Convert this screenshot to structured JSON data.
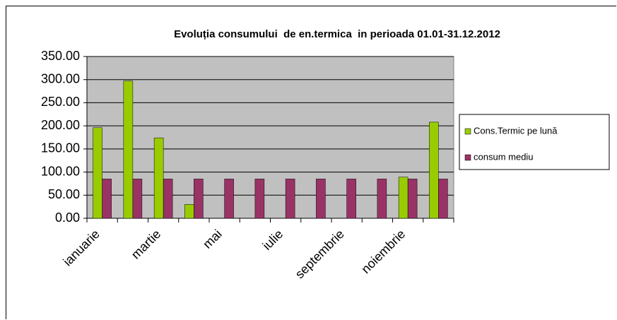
{
  "chart_data": {
    "type": "bar",
    "title": "Evoluția consumului  de en.termica  in perioada 01.01-31.12.2012",
    "categories": [
      "ianuarie",
      null,
      "martie",
      null,
      "mai",
      null,
      "iulie",
      null,
      "septembrie",
      null,
      "noiembrie",
      null
    ],
    "series": [
      {
        "name": "Cons.Termic pe lună",
        "color": "#99cc00",
        "values": [
          196,
          297,
          174,
          30,
          0,
          0,
          0,
          0,
          0,
          0,
          89,
          208
        ]
      },
      {
        "name": "consum mediu",
        "color": "#993366",
        "values": [
          85,
          85,
          85,
          85,
          85,
          85,
          85,
          85,
          85,
          85,
          85,
          85
        ]
      }
    ],
    "ylim": [
      0,
      350
    ],
    "yticks": [
      {
        "value": 0,
        "label": "0.00"
      },
      {
        "value": 50,
        "label": "50.00"
      },
      {
        "value": 100,
        "label": "100.00"
      },
      {
        "value": 150,
        "label": "150.00"
      },
      {
        "value": 200,
        "label": "200.00"
      },
      {
        "value": 250,
        "label": "250.00"
      },
      {
        "value": 300,
        "label": "300.00"
      },
      {
        "value": 350,
        "label": "350.00"
      }
    ],
    "grid": true,
    "background": "#c0c0c0",
    "legend": "right"
  }
}
